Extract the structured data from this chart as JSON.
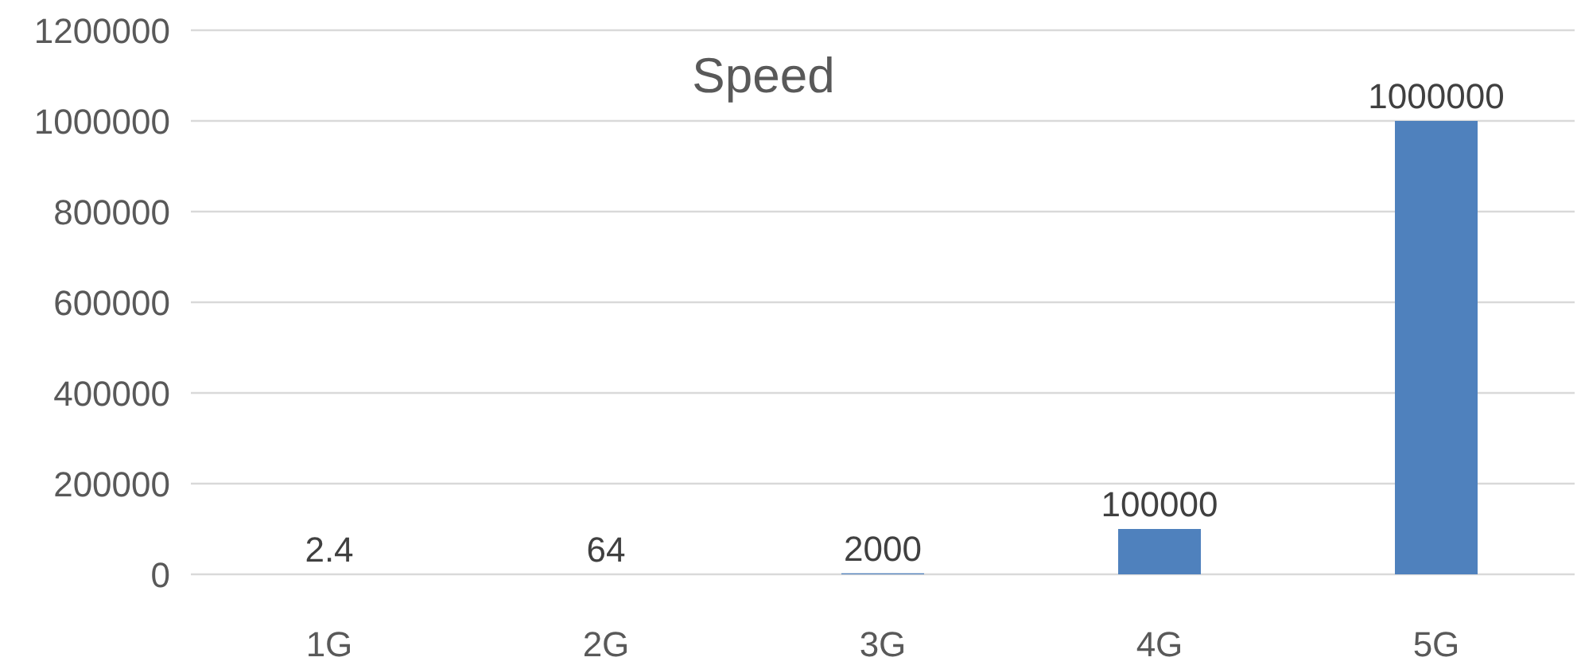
{
  "chart_data": {
    "type": "bar",
    "title": "Speed",
    "categories": [
      "1G",
      "2G",
      "3G",
      "4G",
      "5G"
    ],
    "values": [
      2.4,
      64,
      2000,
      100000,
      1000000
    ],
    "color": "#4f81bd",
    "ylim": [
      0,
      1200000
    ],
    "yticks": [
      0,
      200000,
      400000,
      600000,
      800000,
      1000000,
      1200000
    ],
    "grid": "y",
    "data_labels": true,
    "legend": false
  }
}
